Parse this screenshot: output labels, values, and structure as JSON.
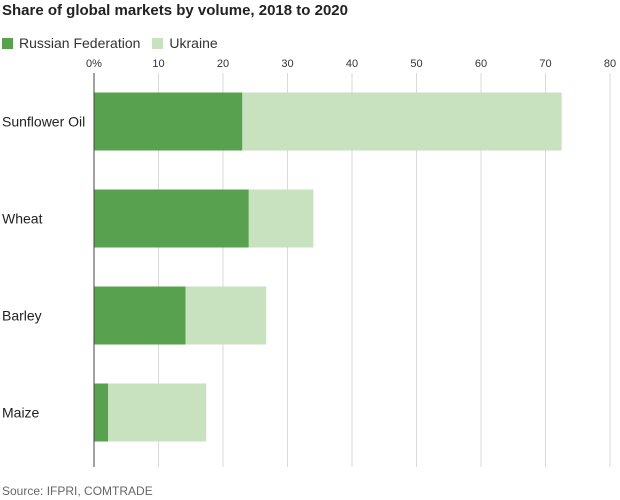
{
  "title": "Share of global markets by volume, 2018 to 2020",
  "source": "Source: IFPRI, COMTRADE",
  "colors": {
    "russia": "#58a14e",
    "ukraine": "#c8e2bf",
    "grid": "#d9d9d9",
    "axis": "#444444"
  },
  "chart_data": {
    "type": "bar",
    "orientation": "horizontal",
    "stacked": true,
    "categories": [
      "Sunflower Oil",
      "Wheat",
      "Barley",
      "Maize"
    ],
    "series": [
      {
        "name": "Russian Federation",
        "values": [
          23,
          24,
          14.2,
          2.2
        ]
      },
      {
        "name": "Ukraine",
        "values": [
          49.5,
          10,
          12.5,
          15.2
        ]
      }
    ],
    "x_ticks": [
      0,
      10,
      20,
      30,
      40,
      50,
      60,
      70,
      80
    ],
    "x_tick_labels": [
      "0%",
      "10",
      "20",
      "30",
      "40",
      "50",
      "60",
      "70",
      "80"
    ],
    "xlim": [
      0,
      80
    ],
    "grid": true,
    "legend_position": "top-left"
  }
}
